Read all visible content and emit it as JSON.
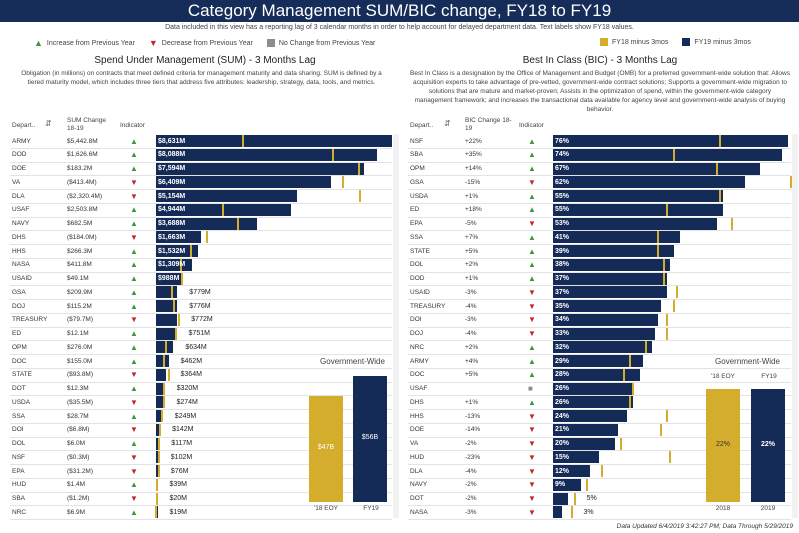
{
  "title": "Category Management SUM/BIC change, FY18 to FY19",
  "subtitle": "Data included in this view has a reporting lag of 3 calendar months in order to help account for delayed department data.  Text labels show FY18 values.",
  "legend": {
    "increase": "Increase from Previous Year",
    "decrease": "Decrease from Previous Year",
    "nochange": "No Change from Previous Year",
    "fy18": "FY18 minus 3mos",
    "fy19": "FY19 minus 3mos"
  },
  "colors": {
    "navy": "#142a57",
    "gold": "#d4ad2c",
    "up": "#3a9a3a",
    "down": "#c0282d",
    "same": "#8c8c8c"
  },
  "sum": {
    "title": "Spend Under Management (SUM) - 3 Months Lag",
    "description": "Obligation (in millions) on contracts that meet defined criteria for management maturity and data sharing. SUM is defined by a tiered maturity model, which includes three tiers that address five attributes: leadership, strategy, data, tools, and metrics.",
    "headers": {
      "dept": "Depart..",
      "change": "SUM Change 18-19",
      "indicator": "Indicator"
    },
    "government_wide": {
      "title": "Government-Wide",
      "fy18_label": "$47B",
      "fy19_label": "$56B",
      "fy18_axis": "'18 EOY",
      "fy19_axis": "FY19"
    }
  },
  "bic": {
    "title": "Best In Class (BIC) - 3 Months Lag",
    "description": "Best In Class is a designation by the Office of Management and Budget (OMB) for a preferred government-wide solution that: Allows acquisition experts to take advantage of pre-vetted, government-wide contract solutions; Supports a government-wide migration to solutions that are mature and market-proven; Assists in the optimization of spend, within the government-wide category management framework; and increases the transactional data available for agency level and government-wide analysis of buying behavior.",
    "headers": {
      "dept": "Depart..",
      "change": "BIC Change 18-19",
      "indicator": "Indicator"
    },
    "government_wide": {
      "title": "Government-Wide",
      "fy18_label": "22%",
      "fy19_label": "22%",
      "fy18_axis": "2018",
      "fy19_axis": "2019",
      "fy18_top": "'18 EOY",
      "fy19_top": "FY19"
    }
  },
  "chart_data": [
    {
      "type": "bar",
      "title": "Spend Under Management (SUM) - 3 Months Lag",
      "unit": "$M",
      "rows": [
        {
          "dept": "ARMY",
          "change": "$5,442.8M",
          "dir": "up",
          "label": "$8,631M",
          "fy19": 8631,
          "fy18": 3188
        },
        {
          "dept": "DOD",
          "change": "$1,626.6M",
          "dir": "up",
          "label": "$8,088M",
          "fy19": 8088,
          "fy18": 6461
        },
        {
          "dept": "DOE",
          "change": "$183.2M",
          "dir": "up",
          "label": "$7,594M",
          "fy19": 7594,
          "fy18": 7411
        },
        {
          "dept": "VA",
          "change": "($413.4M)",
          "dir": "down",
          "label": "$6,409M",
          "fy19": 6409,
          "fy18": 6822
        },
        {
          "dept": "DLA",
          "change": "($2,320.4M)",
          "dir": "down",
          "label": "$5,154M",
          "fy19": 5154,
          "fy18": 7474
        },
        {
          "dept": "USAF",
          "change": "$2,503.8M",
          "dir": "up",
          "label": "$4,944M",
          "fy19": 4944,
          "fy18": 2440
        },
        {
          "dept": "NAVY",
          "change": "$682.5M",
          "dir": "up",
          "label": "$3,688M",
          "fy19": 3688,
          "fy18": 3006
        },
        {
          "dept": "DHS",
          "change": "($184.0M)",
          "dir": "down",
          "label": "$1,663M",
          "fy19": 1663,
          "fy18": 1847
        },
        {
          "dept": "HHS",
          "change": "$266.3M",
          "dir": "up",
          "label": "$1,532M",
          "fy19": 1532,
          "fy18": 1266
        },
        {
          "dept": "NASA",
          "change": "$411.8M",
          "dir": "up",
          "label": "$1,309M",
          "fy19": 1309,
          "fy18": 897
        },
        {
          "dept": "USAID",
          "change": "$49.1M",
          "dir": "up",
          "label": "$988M",
          "fy19": 988,
          "fy18": 939
        },
        {
          "dept": "GSA",
          "change": "$209.9M",
          "dir": "up",
          "label": "$779M",
          "fy19": 779,
          "fy18": 569
        },
        {
          "dept": "DOJ",
          "change": "$115.2M",
          "dir": "up",
          "label": "$776M",
          "fy19": 776,
          "fy18": 661
        },
        {
          "dept": "TREASURY",
          "change": "($79.7M)",
          "dir": "down",
          "label": "$772M",
          "fy19": 772,
          "fy18": 852
        },
        {
          "dept": "ED",
          "change": "$12.1M",
          "dir": "up",
          "label": "$751M",
          "fy19": 751,
          "fy18": 739
        },
        {
          "dept": "OPM",
          "change": "$276.0M",
          "dir": "up",
          "label": "$634M",
          "fy19": 634,
          "fy18": 358
        },
        {
          "dept": "DOC",
          "change": "$155.0M",
          "dir": "up",
          "label": "$462M",
          "fy19": 462,
          "fy18": 307
        },
        {
          "dept": "STATE",
          "change": "($93.8M)",
          "dir": "down",
          "label": "$364M",
          "fy19": 364,
          "fy18": 458
        },
        {
          "dept": "DOT",
          "change": "$12.3M",
          "dir": "up",
          "label": "$320M",
          "fy19": 320,
          "fy18": 308
        },
        {
          "dept": "USDA",
          "change": "($35.5M)",
          "dir": "down",
          "label": "$274M",
          "fy19": 274,
          "fy18": 310
        },
        {
          "dept": "SSA",
          "change": "$28.7M",
          "dir": "up",
          "label": "$249M",
          "fy19": 249,
          "fy18": 220
        },
        {
          "dept": "DOI",
          "change": "($6.8M)",
          "dir": "down",
          "label": "$142M",
          "fy19": 142,
          "fy18": 149
        },
        {
          "dept": "DOL",
          "change": "$6.0M",
          "dir": "up",
          "label": "$117M",
          "fy19": 117,
          "fy18": 111
        },
        {
          "dept": "NSF",
          "change": "($0.3M)",
          "dir": "down",
          "label": "$102M",
          "fy19": 102,
          "fy18": 102
        },
        {
          "dept": "EPA",
          "change": "($31.2M)",
          "dir": "down",
          "label": "$76M",
          "fy19": 76,
          "fy18": 107
        },
        {
          "dept": "HUD",
          "change": "$1.4M",
          "dir": "up",
          "label": "$39M",
          "fy19": 39,
          "fy18": 38
        },
        {
          "dept": "SBA",
          "change": "($1.2M)",
          "dir": "down",
          "label": "$20M",
          "fy19": 20,
          "fy18": 21
        },
        {
          "dept": "NRC",
          "change": "$6.9M",
          "dir": "up",
          "label": "$19M",
          "fy19": 19,
          "fy18": 12
        }
      ],
      "government_wide": {
        "fy18": 47,
        "fy19": 56,
        "unit": "$B"
      }
    },
    {
      "type": "bar",
      "title": "Best In Class (BIC) - 3 Months Lag",
      "unit": "%",
      "rows": [
        {
          "dept": "NSF",
          "change": "+22%",
          "dir": "up",
          "label": "76%",
          "fy19": 76,
          "fy18": 54
        },
        {
          "dept": "SBA",
          "change": "+35%",
          "dir": "up",
          "label": "74%",
          "fy19": 74,
          "fy18": 39
        },
        {
          "dept": "OPM",
          "change": "+14%",
          "dir": "up",
          "label": "67%",
          "fy19": 67,
          "fy18": 53
        },
        {
          "dept": "GSA",
          "change": "-15%",
          "dir": "down",
          "label": "62%",
          "fy19": 62,
          "fy18": 77
        },
        {
          "dept": "USDA",
          "change": "+1%",
          "dir": "up",
          "label": "55%",
          "fy19": 55,
          "fy18": 54
        },
        {
          "dept": "ED",
          "change": "+18%",
          "dir": "up",
          "label": "55%",
          "fy19": 55,
          "fy18": 37
        },
        {
          "dept": "EPA",
          "change": "-5%",
          "dir": "down",
          "label": "53%",
          "fy19": 53,
          "fy18": 58
        },
        {
          "dept": "SSA",
          "change": "+7%",
          "dir": "up",
          "label": "41%",
          "fy19": 41,
          "fy18": 34
        },
        {
          "dept": "STATE",
          "change": "+5%",
          "dir": "up",
          "label": "39%",
          "fy19": 39,
          "fy18": 34
        },
        {
          "dept": "DOL",
          "change": "+2%",
          "dir": "up",
          "label": "38%",
          "fy19": 38,
          "fy18": 36
        },
        {
          "dept": "DOD",
          "change": "+1%",
          "dir": "up",
          "label": "37%",
          "fy19": 37,
          "fy18": 36
        },
        {
          "dept": "USAID",
          "change": "-3%",
          "dir": "down",
          "label": "37%",
          "fy19": 37,
          "fy18": 40
        },
        {
          "dept": "TREASURY",
          "change": "-4%",
          "dir": "down",
          "label": "35%",
          "fy19": 35,
          "fy18": 39
        },
        {
          "dept": "DOI",
          "change": "-3%",
          "dir": "down",
          "label": "34%",
          "fy19": 34,
          "fy18": 37
        },
        {
          "dept": "DOJ",
          "change": "-4%",
          "dir": "down",
          "label": "33%",
          "fy19": 33,
          "fy18": 37
        },
        {
          "dept": "NRC",
          "change": "+2%",
          "dir": "up",
          "label": "32%",
          "fy19": 32,
          "fy18": 30
        },
        {
          "dept": "ARMY",
          "change": "+4%",
          "dir": "up",
          "label": "29%",
          "fy19": 29,
          "fy18": 25
        },
        {
          "dept": "DOC",
          "change": "+5%",
          "dir": "up",
          "label": "28%",
          "fy19": 28,
          "fy18": 23
        },
        {
          "dept": "USAF",
          "change": "",
          "dir": "same",
          "label": "26%",
          "fy19": 26,
          "fy18": 26
        },
        {
          "dept": "DHS",
          "change": "+1%",
          "dir": "up",
          "label": "26%",
          "fy19": 26,
          "fy18": 25
        },
        {
          "dept": "HHS",
          "change": "-13%",
          "dir": "down",
          "label": "24%",
          "fy19": 24,
          "fy18": 37
        },
        {
          "dept": "DOE",
          "change": "-14%",
          "dir": "down",
          "label": "21%",
          "fy19": 21,
          "fy18": 35
        },
        {
          "dept": "VA",
          "change": "-2%",
          "dir": "down",
          "label": "20%",
          "fy19": 20,
          "fy18": 22
        },
        {
          "dept": "HUD",
          "change": "-23%",
          "dir": "down",
          "label": "15%",
          "fy19": 15,
          "fy18": 38
        },
        {
          "dept": "DLA",
          "change": "-4%",
          "dir": "down",
          "label": "12%",
          "fy19": 12,
          "fy18": 16
        },
        {
          "dept": "NAVY",
          "change": "-2%",
          "dir": "down",
          "label": "9%",
          "fy19": 9,
          "fy18": 11
        },
        {
          "dept": "DOT",
          "change": "-2%",
          "dir": "down",
          "label": "5%",
          "fy19": 5,
          "fy18": 7
        },
        {
          "dept": "NASA",
          "change": "-3%",
          "dir": "down",
          "label": "3%",
          "fy19": 3,
          "fy18": 6
        }
      ],
      "government_wide": {
        "fy18": 22,
        "fy19": 22,
        "unit": "%"
      }
    }
  ],
  "footer": "Data Updated 6/4/2019 3:42:27 PM; Data Through 5/29/2019"
}
